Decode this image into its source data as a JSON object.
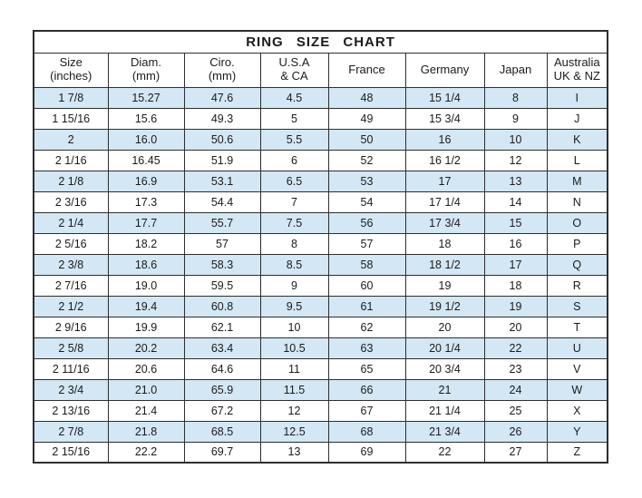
{
  "title": "RING SIZE CHART",
  "colors": {
    "stripe_blue": "#d3e7f4",
    "border": "#2e2e2e",
    "text": "#1b1b1b",
    "background": "#ffffff"
  },
  "chart_data": {
    "type": "table",
    "title": "RING SIZE CHART",
    "columns": [
      {
        "id": "size-inches",
        "line1": "Size",
        "line2": "(inches)"
      },
      {
        "id": "diam-mm",
        "line1": "Diam.",
        "line2": "(mm)"
      },
      {
        "id": "ciro-mm",
        "line1": "Ciro.",
        "line2": "(mm)"
      },
      {
        "id": "usa-ca",
        "line1": "U.S.A",
        "line2": "& CA"
      },
      {
        "id": "france",
        "line1": "France",
        "line2": ""
      },
      {
        "id": "germany",
        "line1": "Germany",
        "line2": ""
      },
      {
        "id": "japan",
        "line1": "Japan",
        "line2": ""
      },
      {
        "id": "australia-uk-nz",
        "line1": "Australia",
        "line2": "UK & NZ"
      }
    ],
    "rows": [
      [
        "1 7/8",
        "15.27",
        "47.6",
        "4.5",
        "48",
        "15 1/4",
        "8",
        "I"
      ],
      [
        "1 15/16",
        "15.6",
        "49.3",
        "5",
        "49",
        "15 3/4",
        "9",
        "J"
      ],
      [
        "2",
        "16.0",
        "50.6",
        "5.5",
        "50",
        "16",
        "10",
        "K"
      ],
      [
        "2 1/16",
        "16.45",
        "51.9",
        "6",
        "52",
        "16 1/2",
        "12",
        "L"
      ],
      [
        "2 1/8",
        "16.9",
        "53.1",
        "6.5",
        "53",
        "17",
        "13",
        "M"
      ],
      [
        "2 3/16",
        "17.3",
        "54.4",
        "7",
        "54",
        "17 1/4",
        "14",
        "N"
      ],
      [
        "2 1/4",
        "17.7",
        "55.7",
        "7.5",
        "56",
        "17 3/4",
        "15",
        "O"
      ],
      [
        "2 5/16",
        "18.2",
        "57",
        "8",
        "57",
        "18",
        "16",
        "P"
      ],
      [
        "2 3/8",
        "18.6",
        "58.3",
        "8.5",
        "58",
        "18 1/2",
        "17",
        "Q"
      ],
      [
        "2 7/16",
        "19.0",
        "59.5",
        "9",
        "60",
        "19",
        "18",
        "R"
      ],
      [
        "2 1/2",
        "19.4",
        "60.8",
        "9.5",
        "61",
        "19 1/2",
        "19",
        "S"
      ],
      [
        "2 9/16",
        "19.9",
        "62.1",
        "10",
        "62",
        "20",
        "20",
        "T"
      ],
      [
        "2 5/8",
        "20.2",
        "63.4",
        "10.5",
        "63",
        "20 1/4",
        "22",
        "U"
      ],
      [
        "2 11/16",
        "20.6",
        "64.6",
        "11",
        "65",
        "20 3/4",
        "23",
        "V"
      ],
      [
        "2 3/4",
        "21.0",
        "65.9",
        "11.5",
        "66",
        "21",
        "24",
        "W"
      ],
      [
        "2 13/16",
        "21.4",
        "67.2",
        "12",
        "67",
        "21 1/4",
        "25",
        "X"
      ],
      [
        "2 7/8",
        "21.8",
        "68.5",
        "12.5",
        "68",
        "21 3/4",
        "26",
        "Y"
      ],
      [
        "2 15/16",
        "22.2",
        "69.7",
        "13",
        "69",
        "22",
        "27",
        "Z"
      ]
    ]
  }
}
